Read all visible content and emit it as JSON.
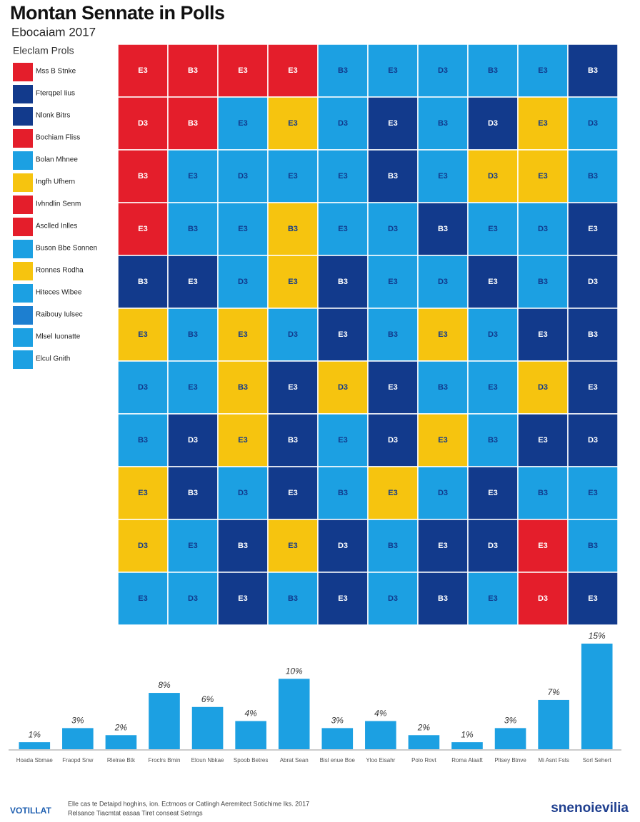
{
  "header": {
    "title": "Montan Sennate in Polls",
    "subtitle": "Ebocaiam 2017"
  },
  "legend": {
    "title": "Eleclam Prols",
    "items": [
      {
        "label": "Mss B Stnke",
        "color": "#e41e2b"
      },
      {
        "label": "Fterqpel Iius",
        "color": "#123a8c"
      },
      {
        "label": "Nlonk Bitrs",
        "color": "#123a8c"
      },
      {
        "label": "Bochiam Fliss",
        "color": "#e41e2b"
      },
      {
        "label": "Bolan Mhnee",
        "color": "#1ca0e2"
      },
      {
        "label": "Ingfh Ufhern",
        "color": "#f6c40f"
      },
      {
        "label": "Ivhndlin Senm",
        "color": "#e41e2b"
      },
      {
        "label": "Asclled Inlles",
        "color": "#e41e2b"
      },
      {
        "label": "Buson Bbe Sonnen",
        "color": "#1ca0e2"
      },
      {
        "label": "Ronnes Rodha",
        "color": "#f6c40f"
      },
      {
        "label": "Hiteces Wibee",
        "color": "#1ca0e2"
      },
      {
        "label": "Raibouy Iulsec",
        "color": "#1d7fd0"
      },
      {
        "label": "Mlsel Iuonatte",
        "color": "#1ca0e2"
      },
      {
        "label": "Elcul Gnith",
        "color": "#1ca0e2"
      }
    ]
  },
  "map": {
    "rows": [
      [
        [
          "E3",
          "#e41e2b"
        ],
        [
          "B3",
          "#e41e2b"
        ],
        [
          "E3",
          "#e41e2b"
        ],
        [
          "E3",
          "#e41e2b"
        ],
        [
          "B3",
          "#1ca0e2"
        ],
        [
          "E3",
          "#1ca0e2"
        ],
        [
          "D3",
          "#1ca0e2"
        ],
        [
          "B3",
          "#1ca0e2"
        ],
        [
          "E3",
          "#1ca0e2"
        ],
        [
          "B3",
          "#123a8c"
        ]
      ],
      [
        [
          "D3",
          "#e41e2b"
        ],
        [
          "B3",
          "#e41e2b"
        ],
        [
          "E3",
          "#1ca0e2"
        ],
        [
          "E3",
          "#f6c40f"
        ],
        [
          "D3",
          "#1ca0e2"
        ],
        [
          "E3",
          "#123a8c"
        ],
        [
          "B3",
          "#1ca0e2"
        ],
        [
          "D3",
          "#123a8c"
        ],
        [
          "E3",
          "#f6c40f"
        ],
        [
          "D3",
          "#1ca0e2"
        ]
      ],
      [
        [
          "B3",
          "#e41e2b"
        ],
        [
          "E3",
          "#1ca0e2"
        ],
        [
          "D3",
          "#1ca0e2"
        ],
        [
          "E3",
          "#1ca0e2"
        ],
        [
          "E3",
          "#1ca0e2"
        ],
        [
          "B3",
          "#123a8c"
        ],
        [
          "E3",
          "#1ca0e2"
        ],
        [
          "D3",
          "#f6c40f"
        ],
        [
          "E3",
          "#f6c40f"
        ],
        [
          "B3",
          "#1ca0e2"
        ]
      ],
      [
        [
          "E3",
          "#e41e2b"
        ],
        [
          "B3",
          "#1ca0e2"
        ],
        [
          "E3",
          "#1ca0e2"
        ],
        [
          "B3",
          "#f6c40f"
        ],
        [
          "E3",
          "#1ca0e2"
        ],
        [
          "D3",
          "#1ca0e2"
        ],
        [
          "B3",
          "#123a8c"
        ],
        [
          "E3",
          "#1ca0e2"
        ],
        [
          "D3",
          "#1ca0e2"
        ],
        [
          "E3",
          "#123a8c"
        ]
      ],
      [
        [
          "B3",
          "#123a8c"
        ],
        [
          "E3",
          "#123a8c"
        ],
        [
          "D3",
          "#1ca0e2"
        ],
        [
          "E3",
          "#f6c40f"
        ],
        [
          "B3",
          "#123a8c"
        ],
        [
          "E3",
          "#1ca0e2"
        ],
        [
          "D3",
          "#1ca0e2"
        ],
        [
          "E3",
          "#123a8c"
        ],
        [
          "B3",
          "#1ca0e2"
        ],
        [
          "D3",
          "#123a8c"
        ]
      ],
      [
        [
          "E3",
          "#f6c40f"
        ],
        [
          "B3",
          "#1ca0e2"
        ],
        [
          "E3",
          "#f6c40f"
        ],
        [
          "D3",
          "#1ca0e2"
        ],
        [
          "E3",
          "#123a8c"
        ],
        [
          "B3",
          "#1ca0e2"
        ],
        [
          "E3",
          "#f6c40f"
        ],
        [
          "D3",
          "#1ca0e2"
        ],
        [
          "E3",
          "#123a8c"
        ],
        [
          "B3",
          "#123a8c"
        ]
      ],
      [
        [
          "D3",
          "#1ca0e2"
        ],
        [
          "E3",
          "#1ca0e2"
        ],
        [
          "B3",
          "#f6c40f"
        ],
        [
          "E3",
          "#123a8c"
        ],
        [
          "D3",
          "#f6c40f"
        ],
        [
          "E3",
          "#123a8c"
        ],
        [
          "B3",
          "#1ca0e2"
        ],
        [
          "E3",
          "#1ca0e2"
        ],
        [
          "D3",
          "#f6c40f"
        ],
        [
          "E3",
          "#123a8c"
        ]
      ],
      [
        [
          "B3",
          "#1ca0e2"
        ],
        [
          "D3",
          "#123a8c"
        ],
        [
          "E3",
          "#f6c40f"
        ],
        [
          "B3",
          "#123a8c"
        ],
        [
          "E3",
          "#1ca0e2"
        ],
        [
          "D3",
          "#123a8c"
        ],
        [
          "E3",
          "#f6c40f"
        ],
        [
          "B3",
          "#1ca0e2"
        ],
        [
          "E3",
          "#123a8c"
        ],
        [
          "D3",
          "#123a8c"
        ]
      ],
      [
        [
          "E3",
          "#f6c40f"
        ],
        [
          "B3",
          "#123a8c"
        ],
        [
          "D3",
          "#1ca0e2"
        ],
        [
          "E3",
          "#123a8c"
        ],
        [
          "B3",
          "#1ca0e2"
        ],
        [
          "E3",
          "#f6c40f"
        ],
        [
          "D3",
          "#1ca0e2"
        ],
        [
          "E3",
          "#123a8c"
        ],
        [
          "B3",
          "#1ca0e2"
        ],
        [
          "E3",
          "#1ca0e2"
        ]
      ],
      [
        [
          "D3",
          "#f6c40f"
        ],
        [
          "E3",
          "#1ca0e2"
        ],
        [
          "B3",
          "#123a8c"
        ],
        [
          "E3",
          "#f6c40f"
        ],
        [
          "D3",
          "#123a8c"
        ],
        [
          "B3",
          "#1ca0e2"
        ],
        [
          "E3",
          "#123a8c"
        ],
        [
          "D3",
          "#123a8c"
        ],
        [
          "E3",
          "#e41e2b"
        ],
        [
          "B3",
          "#1ca0e2"
        ]
      ],
      [
        [
          "E3",
          "#1ca0e2"
        ],
        [
          "D3",
          "#1ca0e2"
        ],
        [
          "E3",
          "#123a8c"
        ],
        [
          "B3",
          "#1ca0e2"
        ],
        [
          "E3",
          "#123a8c"
        ],
        [
          "D3",
          "#1ca0e2"
        ],
        [
          "B3",
          "#123a8c"
        ],
        [
          "E3",
          "#1ca0e2"
        ],
        [
          "D3",
          "#e41e2b"
        ],
        [
          "E3",
          "#123a8c"
        ]
      ]
    ]
  },
  "chart_data": {
    "type": "bar",
    "color": "#1ca0e2",
    "categories": [
      "Hoada Sbmae",
      "Fraopd Snw",
      "Rlelrae Btk",
      "Froclrs Bmin",
      "Eloun Nbkae",
      "Spoob Betres",
      "Abrat Sean",
      "Bisl enue Boe",
      "Yloo Eisahr",
      "Polo Rovt",
      "Roma Alaaft",
      "Pltsey Btnve",
      "Mi Asnt Fsts",
      "Sorl Sehert"
    ],
    "values": [
      1,
      3,
      2,
      8,
      6,
      4,
      10,
      3,
      4,
      2,
      1,
      3,
      7,
      15
    ],
    "value_labels": [
      "1%",
      "3%",
      "2%",
      "8%",
      "6%",
      "4%",
      "10%",
      "3%",
      "4%",
      "2%",
      "1%",
      "3%",
      "7%",
      "15%"
    ]
  },
  "footer": {
    "left": "VOTILLAT",
    "line1": "Elle cas te Detaipd hoghins, ion. Ectmoos or Catlingh Aeremitect Sotichime Iks. 2017",
    "line2": "Relsance Tiacmtat easaa Tiret conseat Setrngs",
    "brand": "snenoievilia"
  }
}
